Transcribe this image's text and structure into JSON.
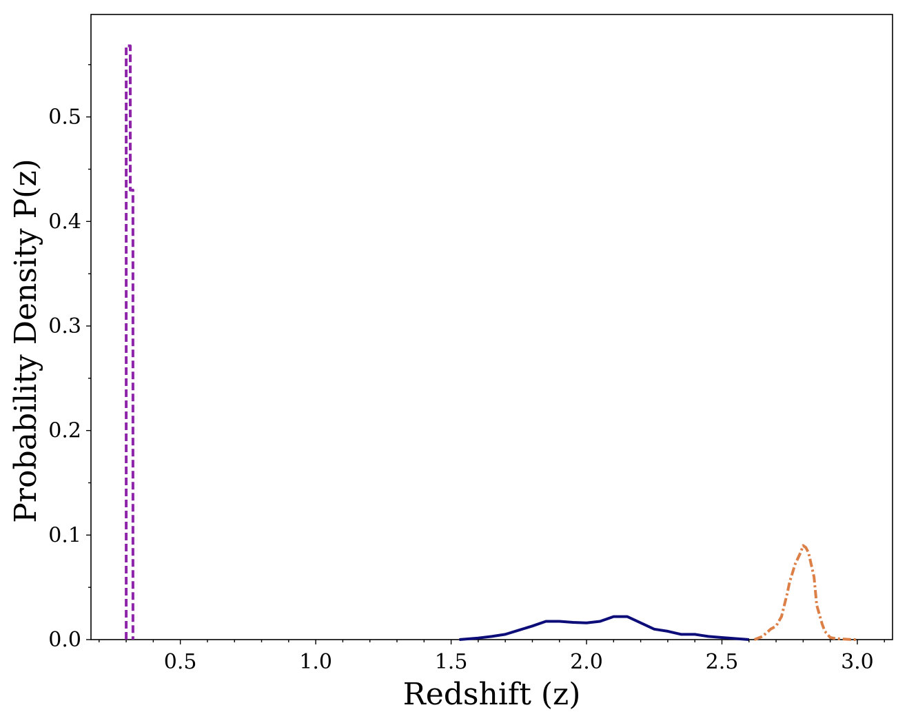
{
  "chart_data": {
    "type": "line",
    "title": "",
    "xlabel": "Redshift (z)",
    "ylabel": "Probability Density P(z)",
    "xlim": [
      0.17,
      3.13
    ],
    "ylim": [
      0.0,
      0.598
    ],
    "grid": false,
    "legend": "none",
    "x_major_ticks": [
      0.5,
      1.0,
      1.5,
      2.0,
      2.5,
      3.0
    ],
    "x_tick_labels": [
      "0.5",
      "1.0",
      "1.5",
      "2.0",
      "2.5",
      "3.0"
    ],
    "x_minor_step": 0.1,
    "y_major_ticks": [
      0.0,
      0.1,
      0.2,
      0.3,
      0.4,
      0.5
    ],
    "y_tick_labels": [
      "0.0",
      "0.1",
      "0.2",
      "0.3",
      "0.4",
      "0.5"
    ],
    "y_minor_step": 0.05,
    "series": [
      {
        "name": "purple-dashed",
        "color": "#8e24aa",
        "dash": "dashed",
        "x": [
          0.3,
          0.3,
          0.315,
          0.315,
          0.32,
          0.32,
          0.325,
          0.325
        ],
        "y": [
          0.0,
          0.568,
          0.568,
          0.43,
          0.43,
          0.43,
          0.43,
          0.0
        ]
      },
      {
        "name": "navy-solid",
        "color": "#0d0d7a",
        "dash": "solid",
        "x": [
          1.53,
          1.6,
          1.65,
          1.7,
          1.75,
          1.8,
          1.85,
          1.9,
          1.95,
          2.0,
          2.05,
          2.1,
          2.15,
          2.2,
          2.25,
          2.3,
          2.35,
          2.4,
          2.45,
          2.5,
          2.55,
          2.6
        ],
        "y": [
          0.0,
          0.0015,
          0.003,
          0.005,
          0.009,
          0.013,
          0.0175,
          0.0175,
          0.0165,
          0.016,
          0.0175,
          0.022,
          0.022,
          0.016,
          0.01,
          0.008,
          0.005,
          0.005,
          0.003,
          0.002,
          0.001,
          0.0
        ]
      },
      {
        "name": "orange-dashdot",
        "color": "#dc8047",
        "dash": "dashdot",
        "x": [
          2.62,
          2.65,
          2.68,
          2.7,
          2.72,
          2.74,
          2.75,
          2.77,
          2.79,
          2.8,
          2.81,
          2.82,
          2.84,
          2.85,
          2.87,
          2.88,
          2.9,
          2.92,
          2.95,
          2.98,
          3.0
        ],
        "y": [
          0.0,
          0.003,
          0.01,
          0.013,
          0.022,
          0.043,
          0.055,
          0.072,
          0.083,
          0.09,
          0.088,
          0.083,
          0.06,
          0.033,
          0.015,
          0.008,
          0.002,
          0.001,
          0.0005,
          0.0,
          0.0
        ]
      }
    ]
  }
}
